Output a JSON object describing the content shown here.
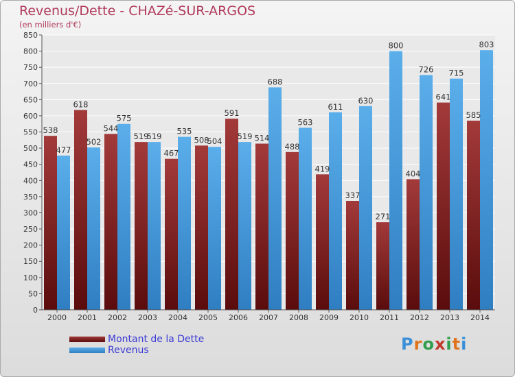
{
  "header": {
    "title": "Revenus/Dette - CHAZé-SUR-ARGOS",
    "subtitle": "(en milliers d'€)"
  },
  "legend": {
    "items": [
      {
        "label": "Montant de la Dette",
        "color": "#8b2a2a"
      },
      {
        "label": "Revenus",
        "color": "#4a9de2"
      }
    ]
  },
  "logo": {
    "letters": [
      "P",
      "r",
      "o",
      "x",
      "i",
      "t",
      "i"
    ],
    "colors": [
      "#3a8fd8",
      "#e0731d",
      "#2f9d4c",
      "#c0392b",
      "#2f9d4c",
      "#e0731d",
      "#3a8fd8"
    ]
  },
  "chart_data": {
    "type": "bar",
    "title": "Revenus/Dette - CHAZé-SUR-ARGOS",
    "subtitle": "(en milliers d'€)",
    "xlabel": "",
    "ylabel": "",
    "ylim": [
      0,
      850
    ],
    "ytick_step": 50,
    "grid": true,
    "legend_position": "bottom-left",
    "categories": [
      "2000",
      "2001",
      "2002",
      "2003",
      "2004",
      "2005",
      "2006",
      "2007",
      "2008",
      "2009",
      "2010",
      "2011",
      "2012",
      "2013",
      "2014"
    ],
    "series": [
      {
        "name": "Montant de la Dette",
        "color": "#8b2a2a",
        "values": [
          538,
          618,
          544,
          519,
          467,
          508,
          591,
          514,
          488,
          419,
          337,
          271,
          404,
          641,
          585
        ]
      },
      {
        "name": "Revenus",
        "color": "#4a9de2",
        "values": [
          477,
          502,
          575,
          519,
          535,
          504,
          519,
          688,
          563,
          611,
          630,
          800,
          726,
          715,
          803
        ]
      }
    ]
  }
}
